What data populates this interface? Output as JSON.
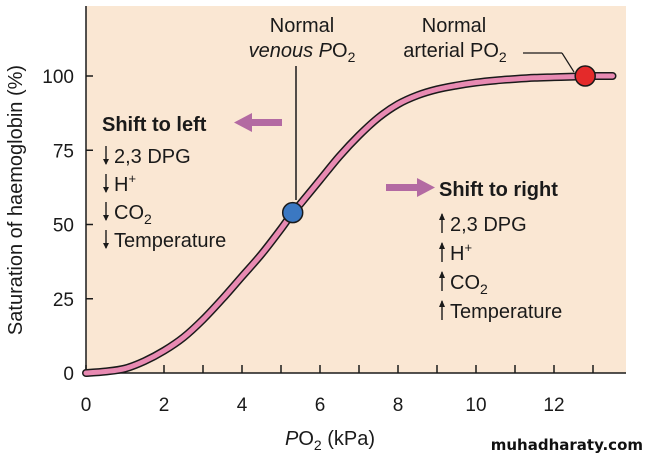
{
  "chart_data": {
    "type": "line",
    "xlabel": {
      "italic": "P",
      "main": "O",
      "sub": "2",
      "unit": "(kPa)"
    },
    "ylabel": "Saturation of haemoglobin (%)",
    "xlim": [
      0,
      14
    ],
    "ylim": [
      0,
      120
    ],
    "x_ticks": [
      "0",
      "2",
      "4",
      "6",
      "8",
      "10",
      "12"
    ],
    "y_ticks": [
      "0",
      "25",
      "50",
      "75",
      "100"
    ],
    "grid": false,
    "series": [
      {
        "x": [
          0,
          0.5,
          1,
          1.5,
          2,
          2.5,
          3,
          3.5,
          4,
          4.5,
          5,
          5.3,
          5.5,
          6,
          6.5,
          7,
          7.5,
          8,
          8.5,
          9,
          9.5,
          10,
          10.5,
          11,
          11.5,
          12,
          12.5,
          12.8,
          13,
          13.5
        ],
        "y": [
          0,
          0.5,
          1.5,
          4,
          7.5,
          12,
          18,
          25,
          32.5,
          40,
          48.5,
          54,
          57,
          65,
          73,
          80,
          86,
          90.5,
          93.5,
          95.5,
          96.8,
          97.8,
          98.5,
          99,
          99.4,
          99.6,
          99.8,
          100,
          100,
          100
        ]
      }
    ],
    "points": [
      {
        "name": "venous",
        "x": 5.3,
        "y": 54,
        "color": "#3b78c2"
      },
      {
        "name": "arterial",
        "x": 12.8,
        "y": 100,
        "color": "#e42a2a"
      }
    ],
    "annotations": {
      "venous": {
        "line1": "Normal",
        "line2_text": "venous P",
        "line2_main": "O",
        "line2_sub": "2"
      },
      "arterial": {
        "line1": "Normal",
        "line2_text": "arterial P",
        "line2_main": "O",
        "line2_sub": "2"
      },
      "shift_left": {
        "title": "Shift to left",
        "items": [
          {
            "text": "2,3 DPG",
            "sup": "",
            "sub": ""
          },
          {
            "text": "H",
            "sup": "+",
            "sub": ""
          },
          {
            "text": "CO",
            "sup": "",
            "sub": "2"
          },
          {
            "text": "Temperature",
            "sup": "",
            "sub": ""
          }
        ]
      },
      "shift_right": {
        "title": "Shift to right",
        "items": [
          {
            "text": "2,3 DPG",
            "sup": "",
            "sub": ""
          },
          {
            "text": "H",
            "sup": "+",
            "sub": ""
          },
          {
            "text": "CO",
            "sup": "",
            "sub": "2"
          },
          {
            "text": "Temperature",
            "sup": "",
            "sub": ""
          }
        ]
      }
    }
  },
  "watermark": "muhadharaty.com",
  "colors": {
    "background": "#fae7d3",
    "curve_fill": "#e88ab2",
    "curve_outline": "#1a1a1a",
    "arrow": "#b36aa2",
    "venous_point": "#3b78c2",
    "arterial_point": "#e42a2a"
  }
}
